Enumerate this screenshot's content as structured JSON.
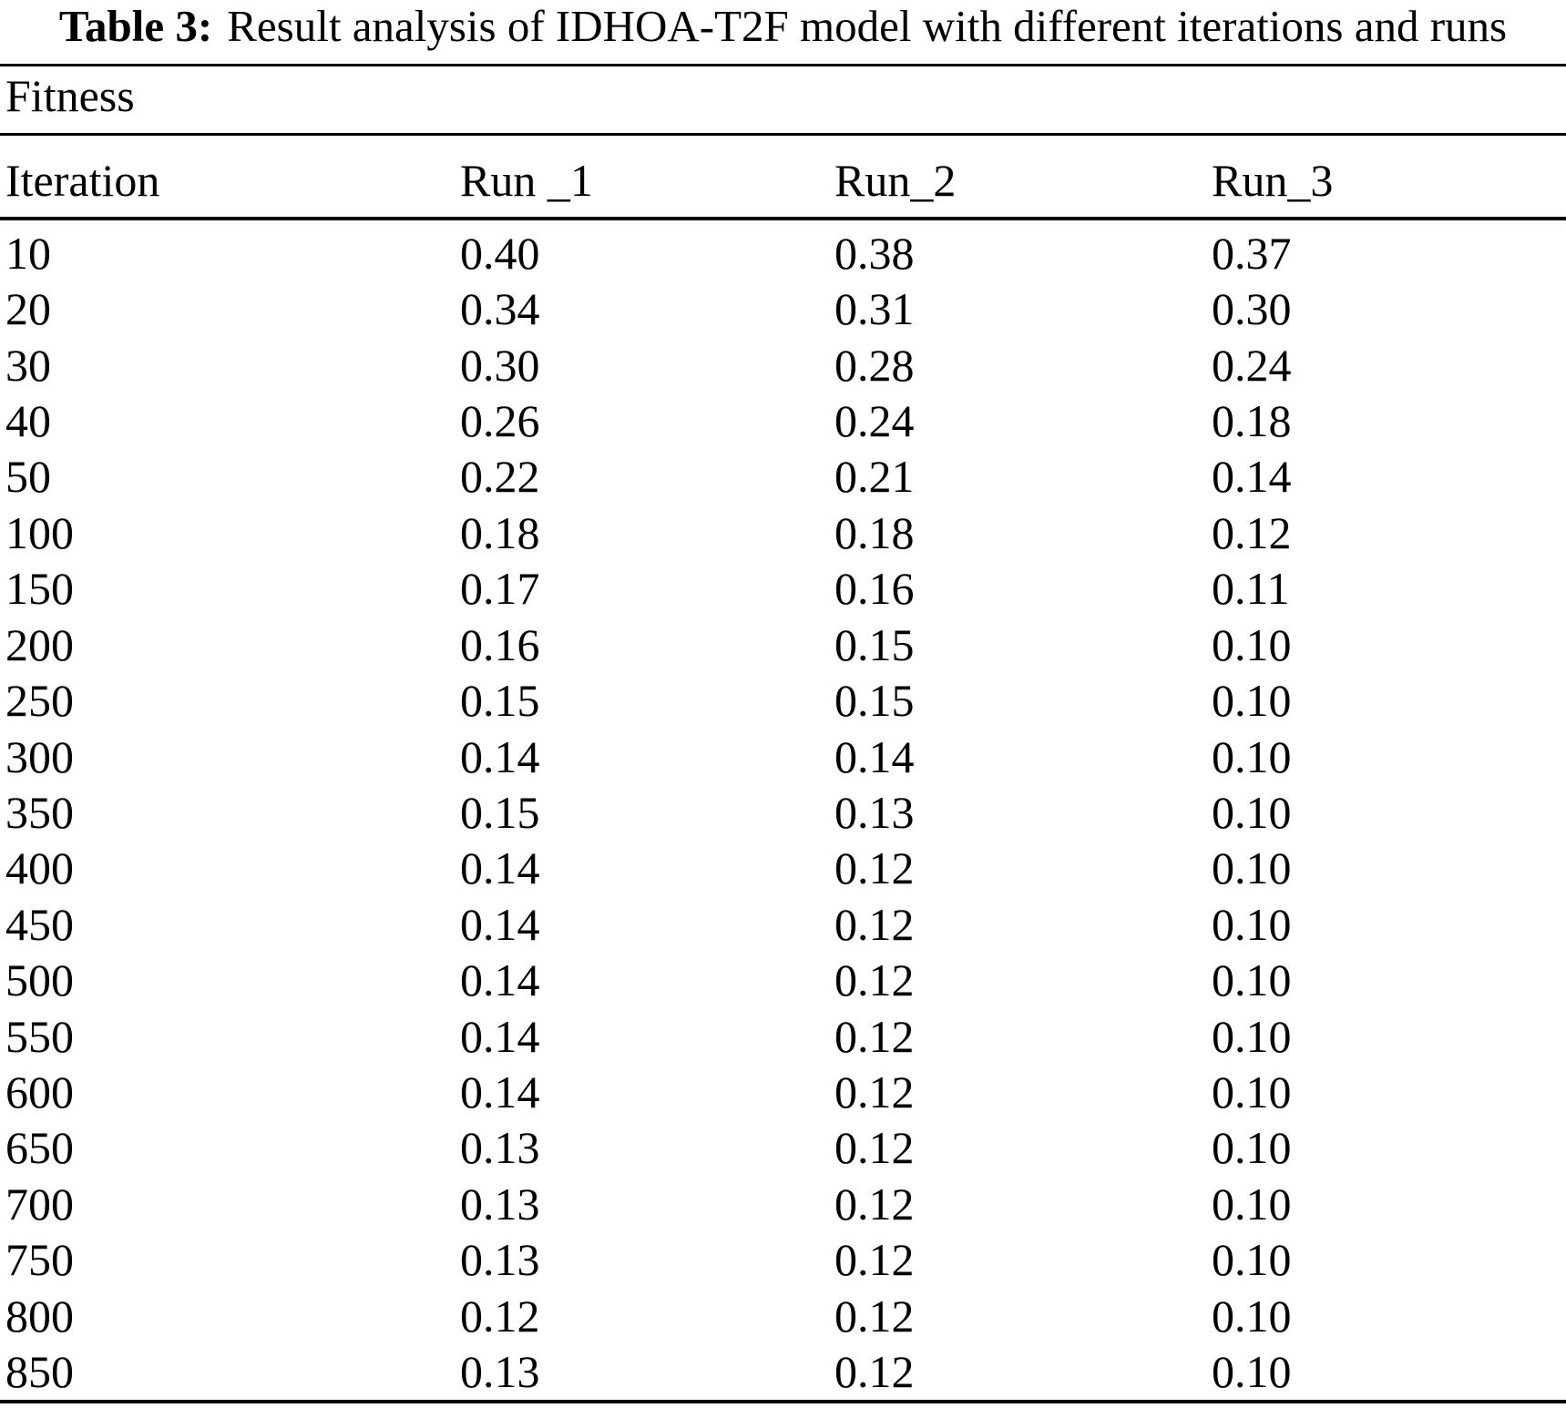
{
  "caption": {
    "label": "Table 3:",
    "text": "Result analysis of IDHOA-T2F model with different iterations and runs"
  },
  "table": {
    "group_header": "Fitness",
    "columns": [
      "Iteration",
      "Run _1",
      "Run_2",
      "Run_3"
    ],
    "rows": [
      [
        "10",
        "0.40",
        "0.38",
        "0.37"
      ],
      [
        "20",
        "0.34",
        "0.31",
        "0.30"
      ],
      [
        "30",
        "0.30",
        "0.28",
        "0.24"
      ],
      [
        "40",
        "0.26",
        "0.24",
        "0.18"
      ],
      [
        "50",
        "0.22",
        "0.21",
        "0.14"
      ],
      [
        "100",
        "0.18",
        "0.18",
        "0.12"
      ],
      [
        "150",
        "0.17",
        "0.16",
        "0.11"
      ],
      [
        "200",
        "0.16",
        "0.15",
        "0.10"
      ],
      [
        "250",
        "0.15",
        "0.15",
        "0.10"
      ],
      [
        "300",
        "0.14",
        "0.14",
        "0.10"
      ],
      [
        "350",
        "0.15",
        "0.13",
        "0.10"
      ],
      [
        "400",
        "0.14",
        "0.12",
        "0.10"
      ],
      [
        "450",
        "0.14",
        "0.12",
        "0.10"
      ],
      [
        "500",
        "0.14",
        "0.12",
        "0.10"
      ],
      [
        "550",
        "0.14",
        "0.12",
        "0.10"
      ],
      [
        "600",
        "0.14",
        "0.12",
        "0.10"
      ],
      [
        "650",
        "0.13",
        "0.12",
        "0.10"
      ],
      [
        "700",
        "0.13",
        "0.12",
        "0.10"
      ],
      [
        "750",
        "0.13",
        "0.12",
        "0.10"
      ],
      [
        "800",
        "0.12",
        "0.12",
        "0.10"
      ],
      [
        "850",
        "0.13",
        "0.12",
        "0.10"
      ]
    ]
  },
  "colors": {
    "text": "#000000",
    "background": "#ffffff",
    "rule": "#000000"
  }
}
